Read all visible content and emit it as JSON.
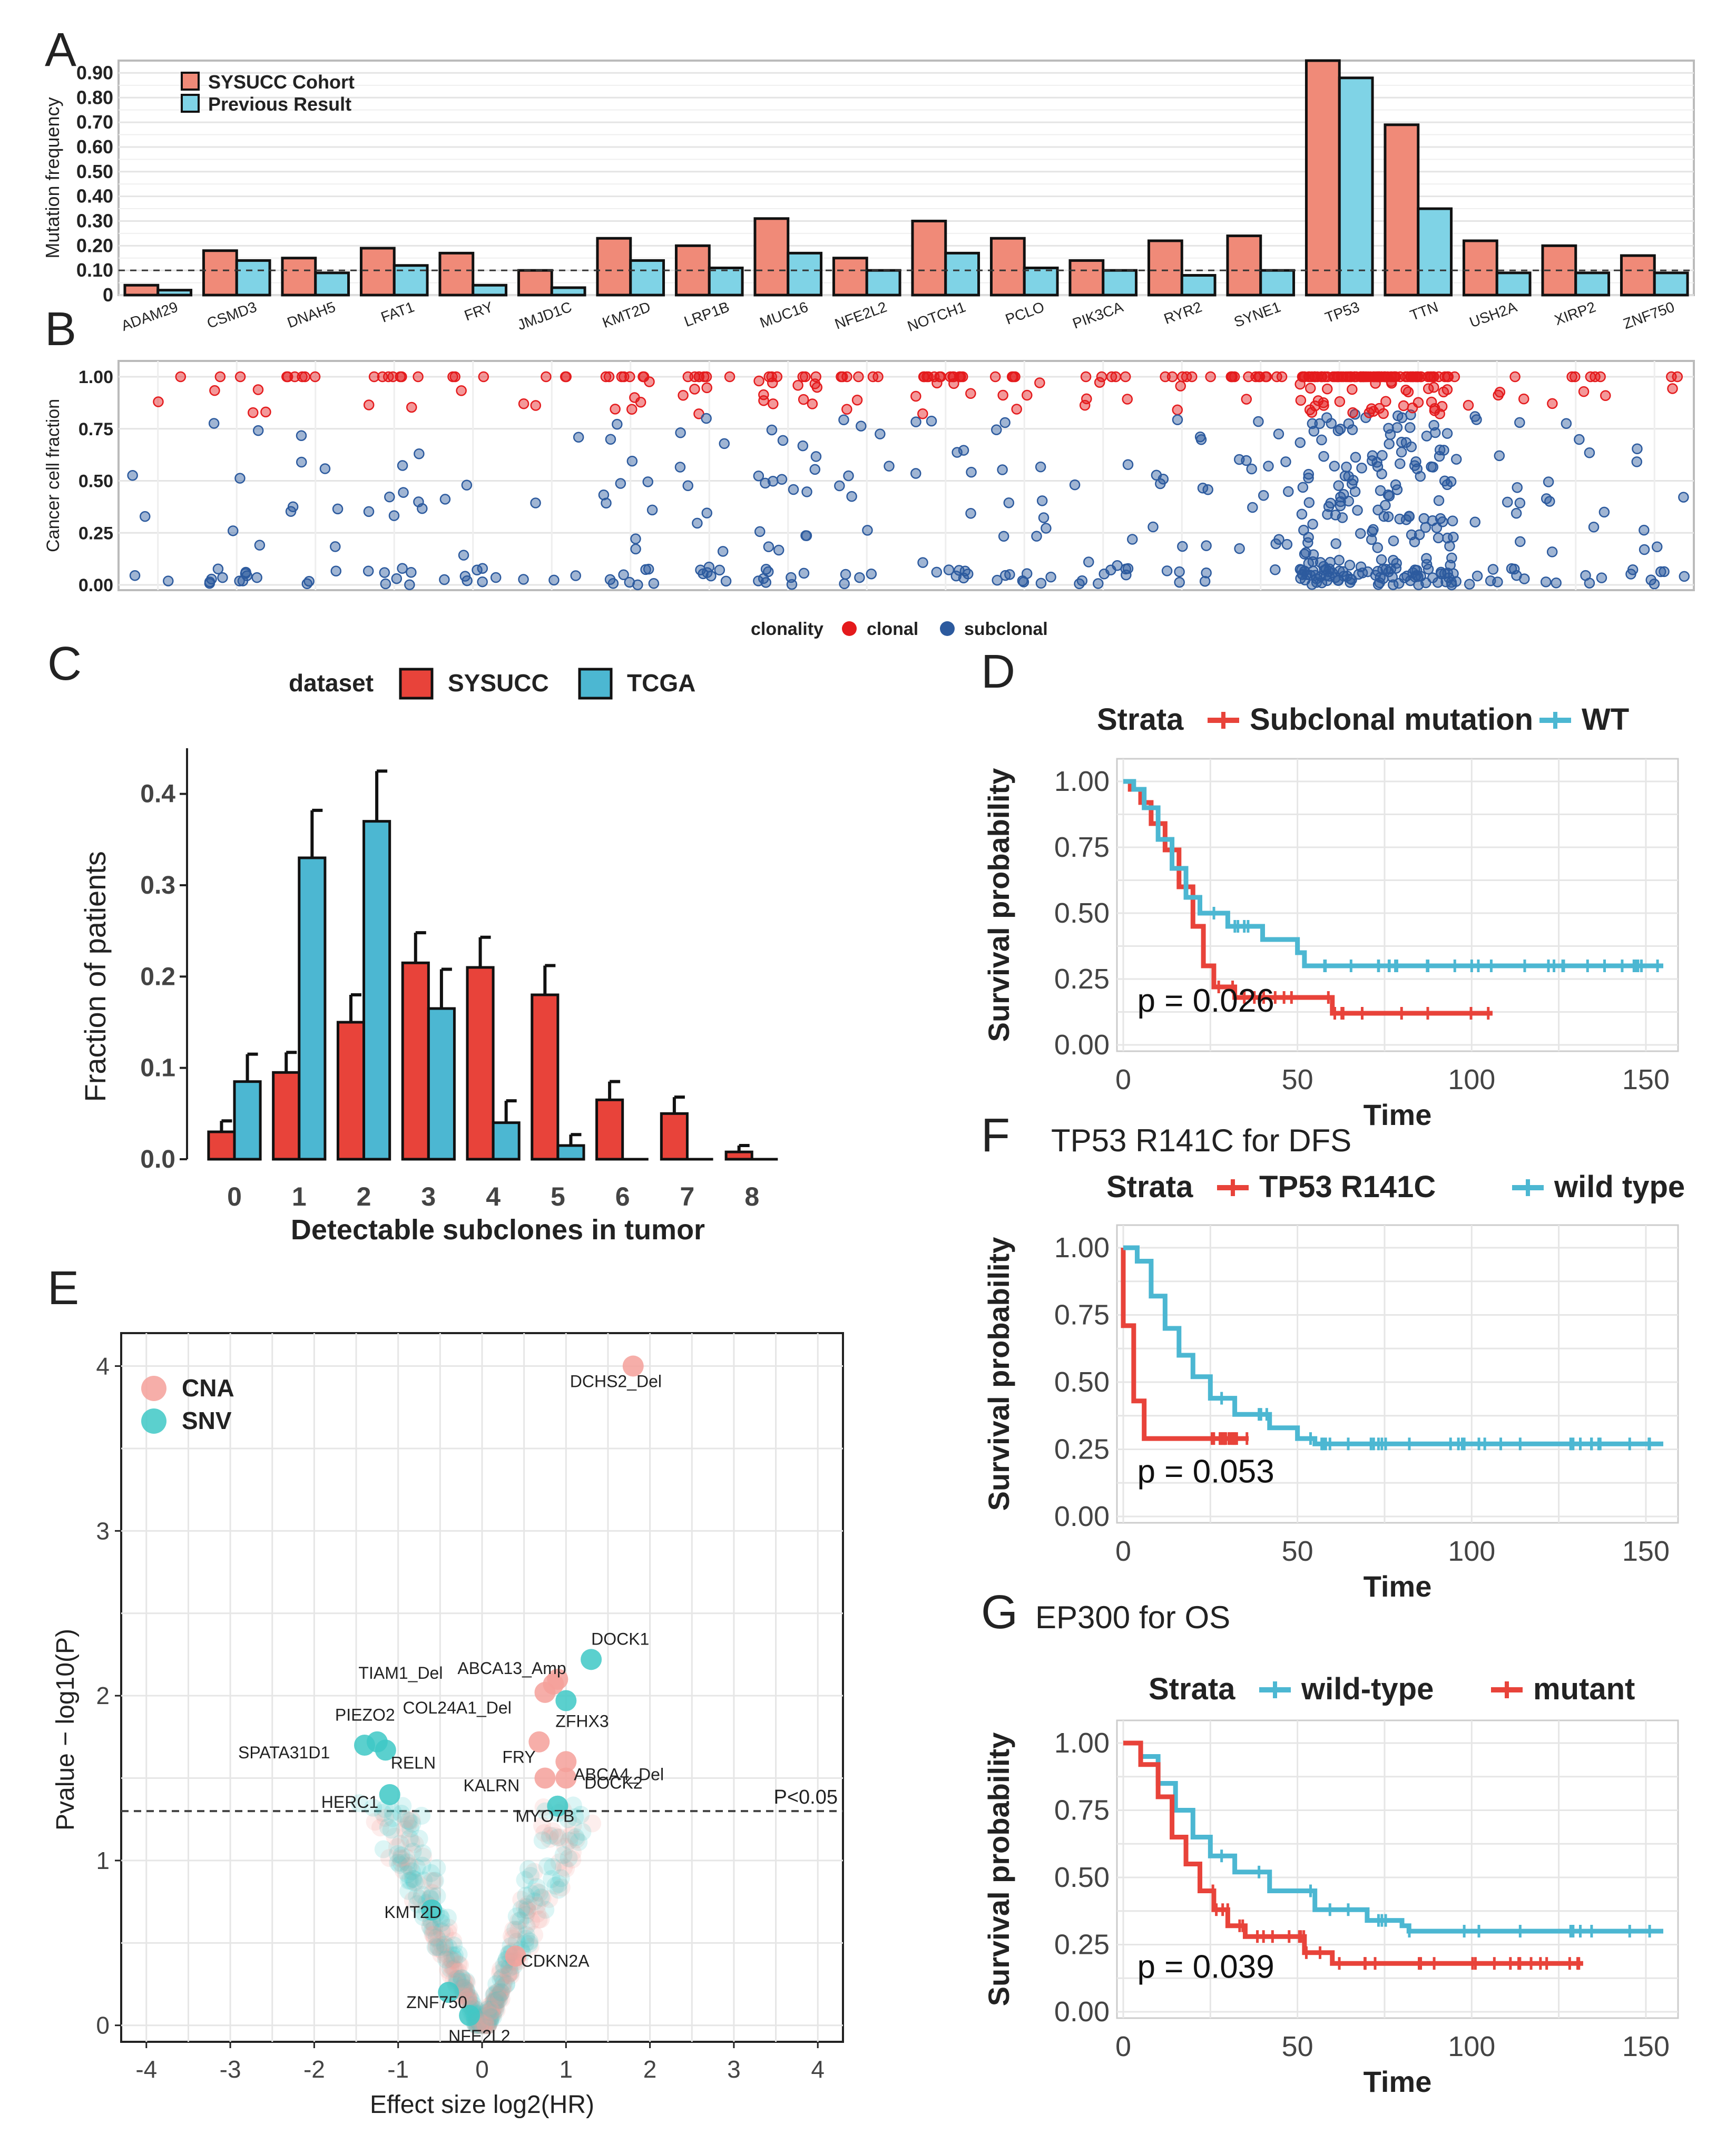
{
  "colors": {
    "red": "#e8433a",
    "salmon": "#f08a78",
    "cyan": "#4cb7d2",
    "lightblue": "#7fd3e6",
    "clonal": "#e41a1c",
    "subclonal": "#2c5a9e",
    "cna": "#f4a09a",
    "snv": "#3ec8c6"
  },
  "panels": {
    "A": "A",
    "B": "B",
    "C": "C",
    "D": "D",
    "E": "E",
    "F": "F",
    "G": "G"
  },
  "chart_data": [
    {
      "id": "A",
      "type": "bar",
      "ylabel": "Mutation frequency",
      "ylim": [
        0,
        0.95
      ],
      "yticks": [
        "0",
        "0.10",
        "0.20",
        "0.30",
        "0.40",
        "0.50",
        "0.60",
        "0.70",
        "0.80",
        "0.90"
      ],
      "threshold": 0.1,
      "categories": [
        "ADAM29",
        "CSMD3",
        "DNAH5",
        "FAT1",
        "FRY",
        "JMJD1C",
        "KMT2D",
        "LRP1B",
        "MUC16",
        "NFE2L2",
        "NOTCH1",
        "PCLO",
        "PIK3CA",
        "RYR2",
        "SYNE1",
        "TP53",
        "TTN",
        "USH2A",
        "XIRP2",
        "ZNF750"
      ],
      "series": [
        {
          "name": "SYSUCC Cohort",
          "values": [
            0.04,
            0.18,
            0.15,
            0.19,
            0.17,
            0.1,
            0.23,
            0.2,
            0.31,
            0.15,
            0.3,
            0.23,
            0.14,
            0.22,
            0.24,
            0.95,
            0.69,
            0.22,
            0.2,
            0.16
          ]
        },
        {
          "name": "Previous Result",
          "values": [
            0.02,
            0.14,
            0.09,
            0.12,
            0.04,
            0.03,
            0.14,
            0.11,
            0.17,
            0.1,
            0.17,
            0.11,
            0.1,
            0.08,
            0.1,
            0.88,
            0.35,
            0.09,
            0.09,
            0.09
          ]
        }
      ]
    },
    {
      "id": "B",
      "type": "scatter",
      "ylabel": "Cancer cell fraction",
      "yticks": [
        "0.00",
        "0.25",
        "0.50",
        "0.75",
        "1.00"
      ],
      "legend_title": "clonality",
      "legend": [
        "clonal",
        "subclonal"
      ],
      "point_counts": [
        6,
        22,
        16,
        24,
        14,
        10,
        30,
        26,
        40,
        20,
        34,
        26,
        22,
        24,
        28,
        170,
        160,
        24,
        22,
        16
      ]
    },
    {
      "id": "C",
      "type": "bar",
      "xlabel": "Detectable subclones in tumor",
      "ylabel": "Fraction of patients",
      "ylim": [
        0,
        0.45
      ],
      "yticks": [
        "0.0",
        "0.1",
        "0.2",
        "0.3",
        "0.4"
      ],
      "legend_title": "dataset",
      "categories": [
        "0",
        "1",
        "2",
        "3",
        "4",
        "5",
        "6",
        "7",
        "8"
      ],
      "series": [
        {
          "name": "SYSUCC",
          "values": [
            0.03,
            0.095,
            0.15,
            0.215,
            0.21,
            0.18,
            0.065,
            0.05,
            0.008
          ],
          "errors": [
            0.012,
            0.022,
            0.03,
            0.033,
            0.033,
            0.032,
            0.02,
            0.018,
            0.007
          ]
        },
        {
          "name": "TCGA",
          "values": [
            0.085,
            0.33,
            0.37,
            0.165,
            0.04,
            0.015,
            0,
            0,
            0
          ],
          "errors": [
            0.03,
            0.052,
            0.055,
            0.043,
            0.024,
            0.012,
            0,
            0,
            0
          ]
        }
      ]
    },
    {
      "id": "D",
      "type": "line",
      "title": "",
      "legend_title": "Strata",
      "legend": [
        "Subclonal mutation",
        "WT"
      ],
      "xlabel": "Time",
      "ylabel": "Survival probability",
      "xticks": [
        "0",
        "50",
        "100",
        "150"
      ],
      "yticks": [
        "0.00",
        "0.25",
        "0.50",
        "0.75",
        "1.00"
      ],
      "pvalue": "p = 0.026",
      "series": [
        {
          "name": "Subclonal mutation",
          "points": [
            [
              0,
              1.0
            ],
            [
              2,
              0.97
            ],
            [
              5,
              0.92
            ],
            [
              8,
              0.84
            ],
            [
              12,
              0.74
            ],
            [
              16,
              0.6
            ],
            [
              20,
              0.45
            ],
            [
              23,
              0.3
            ],
            [
              26,
              0.22
            ],
            [
              32,
              0.18
            ],
            [
              60,
              0.18
            ],
            [
              60,
              0.12
            ],
            [
              106,
              0.12
            ]
          ]
        },
        {
          "name": "WT",
          "points": [
            [
              0,
              1.0
            ],
            [
              3,
              0.97
            ],
            [
              6,
              0.9
            ],
            [
              10,
              0.78
            ],
            [
              14,
              0.67
            ],
            [
              18,
              0.56
            ],
            [
              22,
              0.5
            ],
            [
              30,
              0.45
            ],
            [
              40,
              0.4
            ],
            [
              50,
              0.35
            ],
            [
              52,
              0.3
            ],
            [
              155,
              0.3
            ]
          ]
        }
      ]
    },
    {
      "id": "F",
      "type": "line",
      "title": "TP53 R141C for DFS",
      "legend_title": "Strata",
      "legend": [
        "TP53 R141C",
        "wild type"
      ],
      "xlabel": "Time",
      "ylabel": "Survival probability",
      "xticks": [
        "0",
        "50",
        "100",
        "150"
      ],
      "yticks": [
        "0.00",
        "0.25",
        "0.50",
        "0.75",
        "1.00"
      ],
      "pvalue": "p = 0.053",
      "series": [
        {
          "name": "TP53 R141C",
          "points": [
            [
              0,
              1.0
            ],
            [
              0,
              0.71
            ],
            [
              3,
              0.71
            ],
            [
              3,
              0.43
            ],
            [
              6,
              0.43
            ],
            [
              6,
              0.29
            ],
            [
              36,
              0.29
            ]
          ]
        },
        {
          "name": "wild type",
          "points": [
            [
              0,
              1.0
            ],
            [
              4,
              0.95
            ],
            [
              8,
              0.82
            ],
            [
              12,
              0.7
            ],
            [
              16,
              0.6
            ],
            [
              20,
              0.52
            ],
            [
              25,
              0.44
            ],
            [
              32,
              0.38
            ],
            [
              42,
              0.33
            ],
            [
              50,
              0.29
            ],
            [
              55,
              0.27
            ],
            [
              155,
              0.27
            ]
          ]
        }
      ]
    },
    {
      "id": "G",
      "type": "line",
      "title": "EP300 for OS",
      "legend_title": "Strata",
      "legend": [
        "wild-type",
        "mutant"
      ],
      "xlabel": "Time",
      "ylabel": "Survival probability",
      "xticks": [
        "0",
        "50",
        "100",
        "150"
      ],
      "yticks": [
        "0.00",
        "0.25",
        "0.50",
        "0.75",
        "1.00"
      ],
      "pvalue": "p = 0.039",
      "series": [
        {
          "name": "wild-type",
          "points": [
            [
              0,
              1.0
            ],
            [
              5,
              0.95
            ],
            [
              10,
              0.85
            ],
            [
              15,
              0.75
            ],
            [
              20,
              0.65
            ],
            [
              25,
              0.58
            ],
            [
              32,
              0.52
            ],
            [
              42,
              0.45
            ],
            [
              55,
              0.38
            ],
            [
              70,
              0.34
            ],
            [
              80,
              0.32
            ],
            [
              82,
              0.3
            ],
            [
              155,
              0.3
            ]
          ]
        },
        {
          "name": "mutant",
          "points": [
            [
              0,
              1.0
            ],
            [
              5,
              0.92
            ],
            [
              10,
              0.8
            ],
            [
              14,
              0.65
            ],
            [
              18,
              0.55
            ],
            [
              22,
              0.45
            ],
            [
              26,
              0.38
            ],
            [
              30,
              0.32
            ],
            [
              35,
              0.28
            ],
            [
              50,
              0.28
            ],
            [
              52,
              0.22
            ],
            [
              60,
              0.18
            ],
            [
              132,
              0.18
            ]
          ]
        }
      ]
    },
    {
      "id": "E",
      "type": "scatter",
      "xlabel": "Effect size log2(HR)",
      "ylabel": "Pvalue − log10(P)",
      "xlim": [
        -4.3,
        4.3
      ],
      "ylim": [
        -0.1,
        4.2
      ],
      "xticks": [
        "-4",
        "-3",
        "-2",
        "-1",
        "0",
        "1",
        "2",
        "3",
        "4"
      ],
      "yticks": [
        "0",
        "1",
        "2",
        "3",
        "4"
      ],
      "threshold_label": "P<0.05",
      "threshold": 1.3,
      "legend": [
        "CNA",
        "SNV"
      ],
      "labeled_points": [
        {
          "label": "DCHS2_Del",
          "x": 1.8,
          "y": 4.0,
          "type": "CNA"
        },
        {
          "label": "DOCK1",
          "x": 1.3,
          "y": 2.22,
          "type": "SNV"
        },
        {
          "label": "TIAM1_Del",
          "x": 0.85,
          "y": 2.07,
          "type": "CNA"
        },
        {
          "label": "ABCA13_Amp",
          "x": 0.9,
          "y": 2.1,
          "type": "CNA"
        },
        {
          "label": "COL24A1_Del",
          "x": 0.75,
          "y": 2.02,
          "type": "CNA"
        },
        {
          "label": "ZFHX3",
          "x": 1.0,
          "y": 1.97,
          "type": "SNV"
        },
        {
          "label": "PIEZO2",
          "x": -1.25,
          "y": 1.72,
          "type": "SNV"
        },
        {
          "label": "SPATA31D1",
          "x": -1.4,
          "y": 1.7,
          "type": "SNV"
        },
        {
          "label": "RELN",
          "x": -1.15,
          "y": 1.67,
          "type": "SNV"
        },
        {
          "label": "FRY",
          "x": 0.68,
          "y": 1.72,
          "type": "CNA"
        },
        {
          "label": "ABCA4_Del",
          "x": 1.0,
          "y": 1.6,
          "type": "CNA"
        },
        {
          "label": "KALRN",
          "x": 0.75,
          "y": 1.5,
          "type": "CNA"
        },
        {
          "label": "DOCK2",
          "x": 1.0,
          "y": 1.5,
          "type": "CNA"
        },
        {
          "label": "HERC1",
          "x": -1.1,
          "y": 1.4,
          "type": "SNV"
        },
        {
          "label": "MYO7B",
          "x": 0.9,
          "y": 1.33,
          "type": "SNV"
        },
        {
          "label": "KMT2D",
          "x": -0.6,
          "y": 0.7,
          "type": "SNV"
        },
        {
          "label": "CDKN2A",
          "x": 0.4,
          "y": 0.42,
          "type": "CNA"
        },
        {
          "label": "ZNF750",
          "x": -0.4,
          "y": 0.2,
          "type": "SNV"
        },
        {
          "label": "NFE2L2",
          "x": -0.15,
          "y": 0.06,
          "type": "SNV"
        }
      ]
    }
  ]
}
